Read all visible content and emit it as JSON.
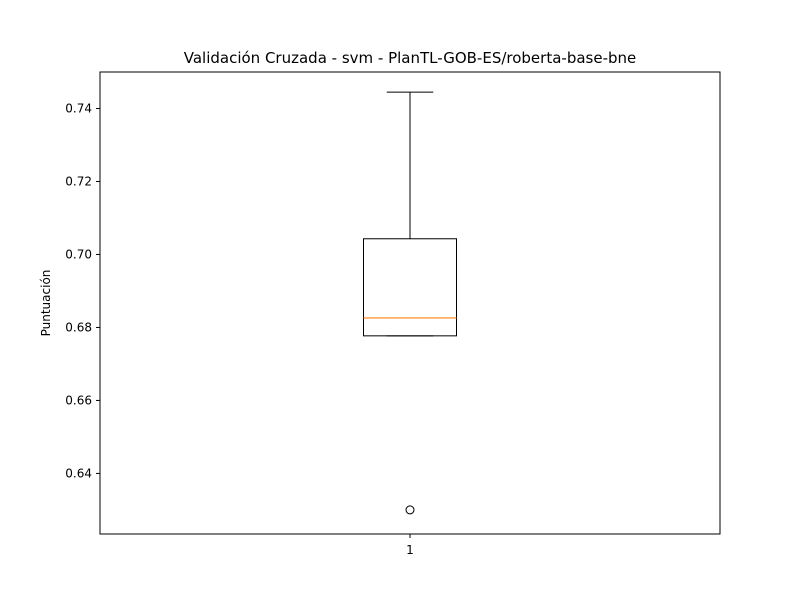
{
  "chart_data": {
    "type": "boxplot",
    "title": "Validación Cruzada - svm - PlanTL-GOB-ES/roberta-base-bne",
    "xlabel": "",
    "ylabel": "Puntuación",
    "categories": [
      "1"
    ],
    "ylim": [
      0.6234,
      0.75
    ],
    "yticks": [
      0.64,
      0.66,
      0.68,
      0.7,
      0.72,
      0.74
    ],
    "ytick_labels": [
      "0.64",
      "0.66",
      "0.68",
      "0.70",
      "0.72",
      "0.74"
    ],
    "boxes": [
      {
        "category": "1",
        "whisker_low": 0.6777,
        "q1": 0.6777,
        "median": 0.6826,
        "q3": 0.7043,
        "whisker_high": 0.7445,
        "outliers": [
          0.63
        ]
      }
    ],
    "grid": false,
    "colors": {
      "box": "#000000",
      "median": "#ff7f0e",
      "outlier": "#000000"
    }
  }
}
